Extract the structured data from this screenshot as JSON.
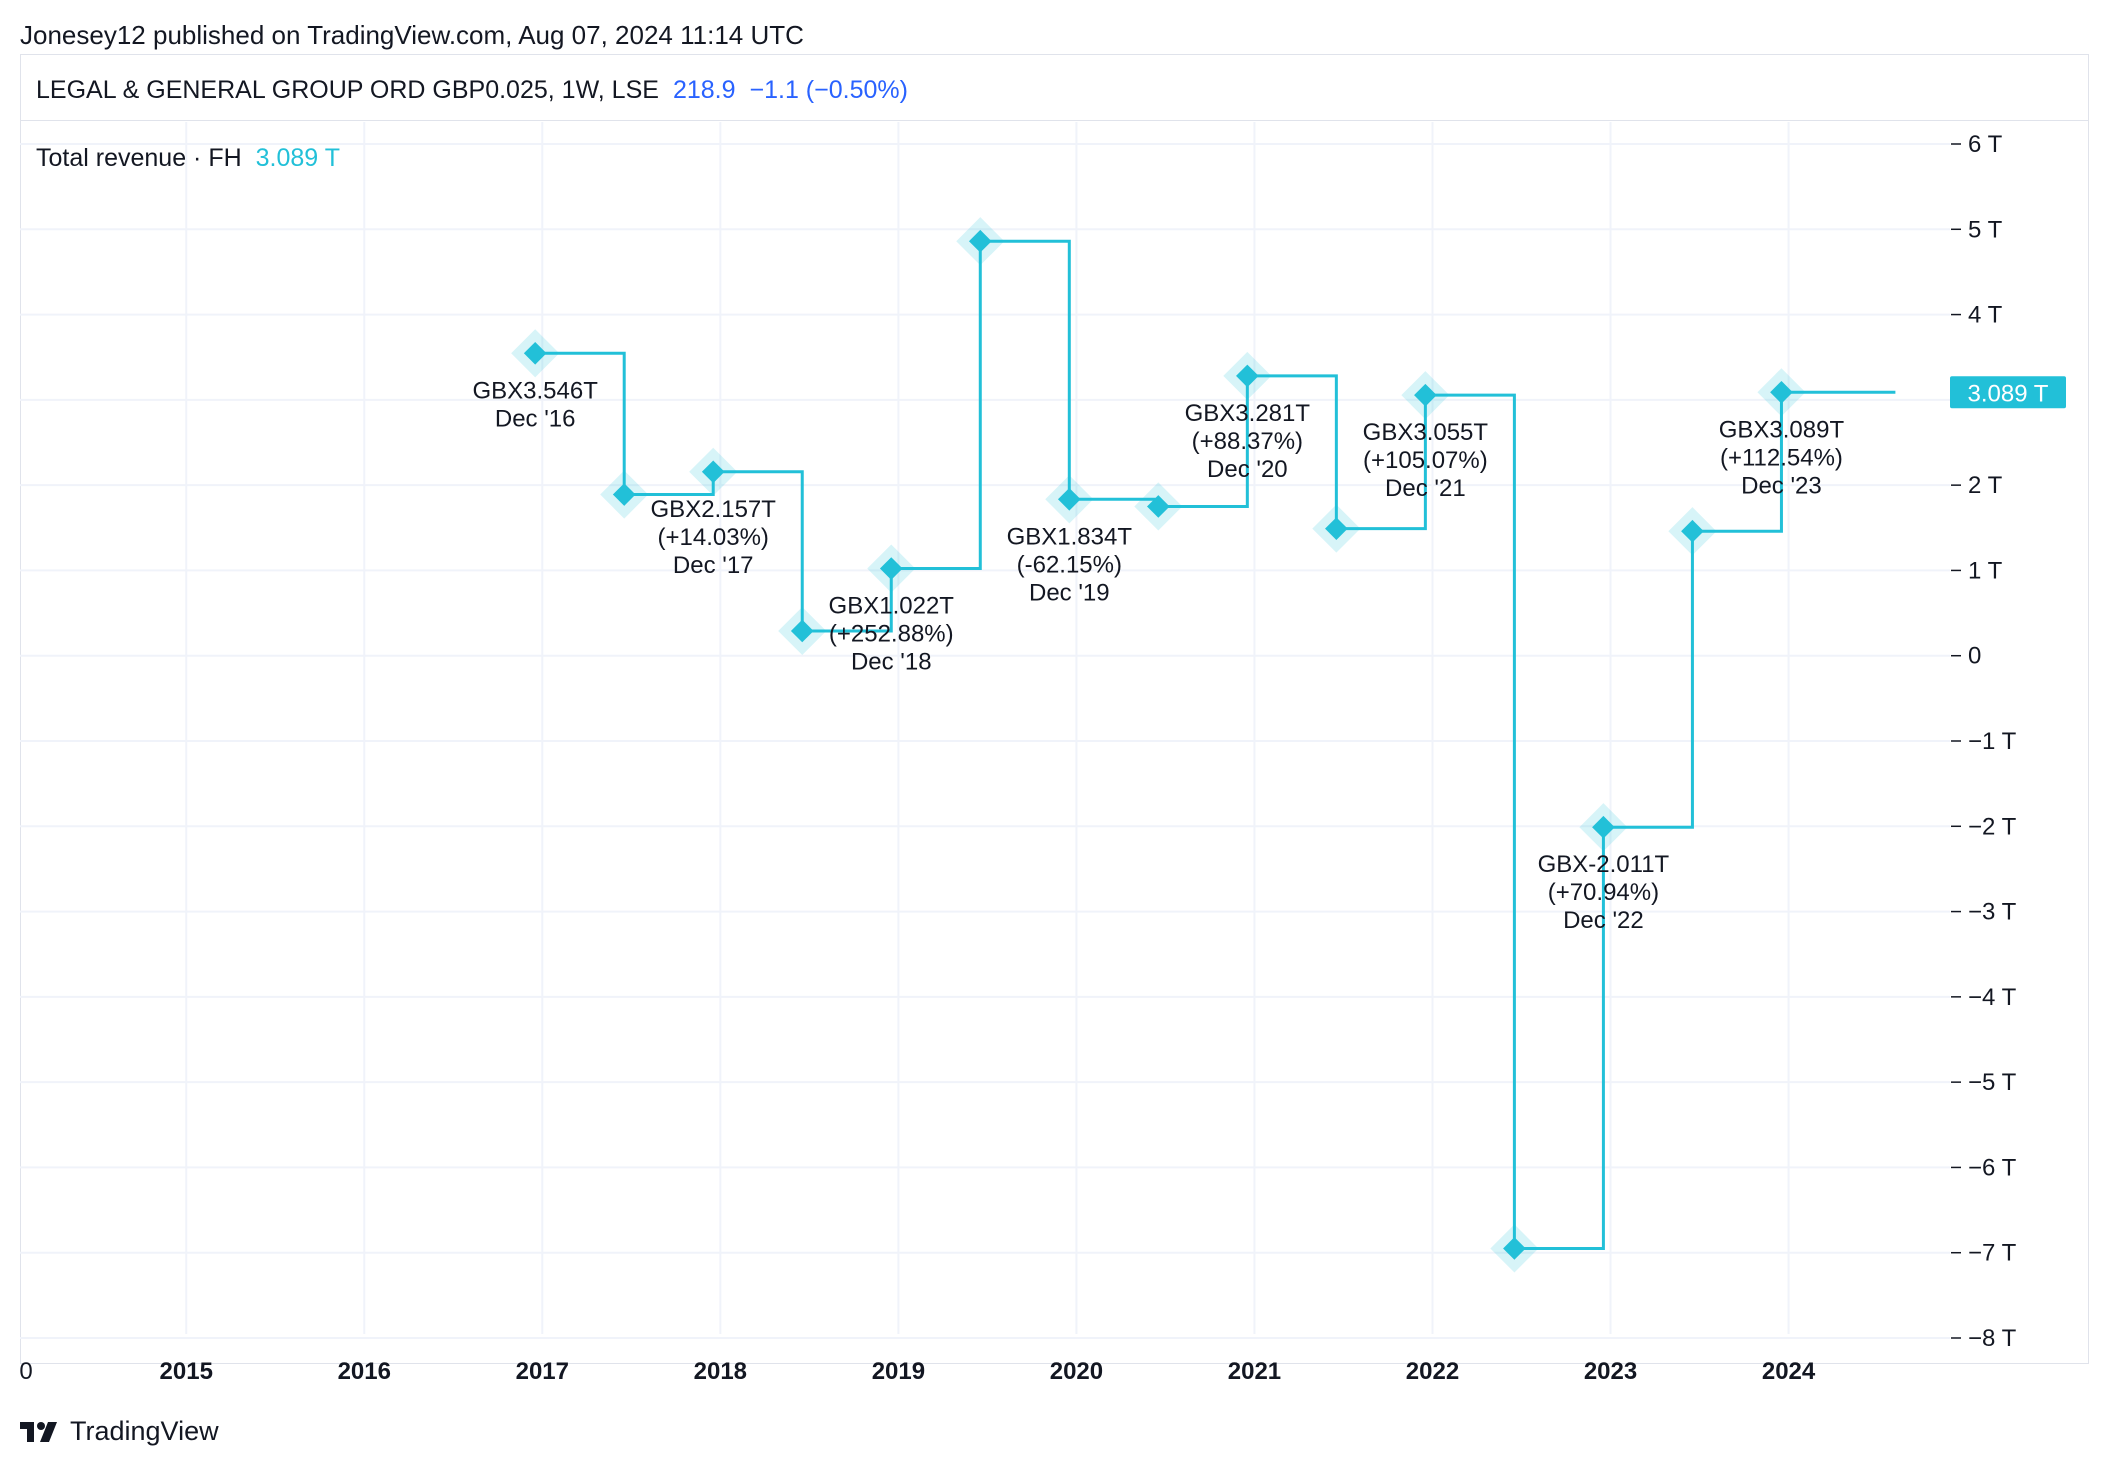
{
  "publisher_line": "Jonesey12 published on TradingView.com, Aug 07, 2024 11:14 UTC",
  "symbol": {
    "name": "LEGAL & GENERAL GROUP ORD GBP0.025, 1W, LSE",
    "price": "218.9",
    "change": "−1.1 (−0.50%)"
  },
  "indicator": {
    "name": "Total revenue · FH",
    "value": "3.089 T"
  },
  "price_tag": "3.089 T",
  "brand": "TradingView",
  "colors": {
    "series": "#22c0d8",
    "price": "#2962ff",
    "grid": "#f0f3fa"
  },
  "chart_data": {
    "type": "line",
    "title": "Total revenue · FH",
    "step": true,
    "unit": "GBX",
    "y_ticks": [
      "6 T",
      "5 T",
      "4 T",
      "3 T",
      "2 T",
      "1 T",
      "0",
      "−1 T",
      "−2 T",
      "−3 T",
      "−4 T",
      "−5 T",
      "−6 T",
      "−7 T",
      "−8 T"
    ],
    "y_tick_values": [
      6,
      5,
      4,
      3,
      2,
      1,
      0,
      -1,
      -2,
      -3,
      -4,
      -5,
      -6,
      -7,
      -8
    ],
    "ylim": [
      -8,
      6
    ],
    "x_ticks": [
      "0",
      "2015",
      "2016",
      "2017",
      "2018",
      "2019",
      "2020",
      "2021",
      "2022",
      "2023",
      "2024"
    ],
    "x_tick_values": [
      2014.1,
      2015,
      2016,
      2017,
      2018,
      2019,
      2020,
      2021,
      2022,
      2023,
      2024
    ],
    "xlim": [
      2014.1,
      2024.8
    ],
    "series": [
      {
        "points": [
          {
            "x": 2016.96,
            "y": 3.546
          },
          {
            "x": 2017.46,
            "y": 1.89
          },
          {
            "x": 2017.96,
            "y": 2.157
          },
          {
            "x": 2018.46,
            "y": 0.29
          },
          {
            "x": 2018.96,
            "y": 1.022
          },
          {
            "x": 2019.46,
            "y": 4.86
          },
          {
            "x": 2019.96,
            "y": 1.834
          },
          {
            "x": 2020.46,
            "y": 1.75
          },
          {
            "x": 2020.96,
            "y": 3.281
          },
          {
            "x": 2021.46,
            "y": 1.49
          },
          {
            "x": 2021.96,
            "y": 3.055
          },
          {
            "x": 2022.46,
            "y": -6.95
          },
          {
            "x": 2022.96,
            "y": -2.011
          },
          {
            "x": 2023.46,
            "y": 1.46
          },
          {
            "x": 2023.96,
            "y": 3.089
          }
        ],
        "last_x": 2024.6
      }
    ],
    "annotations": [
      {
        "x": 2016.96,
        "y": 3.546,
        "lines": [
          "GBX3.546T",
          "Dec '16"
        ]
      },
      {
        "x": 2017.96,
        "y": 2.157,
        "lines": [
          "GBX2.157T",
          "(+14.03%)",
          "Dec '17"
        ]
      },
      {
        "x": 2018.96,
        "y": 1.022,
        "lines": [
          "GBX1.022T",
          "(+252.88%)",
          "Dec '18"
        ]
      },
      {
        "x": 2019.96,
        "y": 1.834,
        "lines": [
          "GBX1.834T",
          "(-62.15%)",
          "Dec '19"
        ]
      },
      {
        "x": 2020.96,
        "y": 3.281,
        "lines": [
          "GBX3.281T",
          "(+88.37%)",
          "Dec '20"
        ]
      },
      {
        "x": 2021.96,
        "y": 3.055,
        "lines": [
          "GBX3.055T",
          "(+105.07%)",
          "Dec '21"
        ]
      },
      {
        "x": 2022.96,
        "y": -2.011,
        "lines": [
          "GBX-2.011T",
          "(+70.94%)",
          "Dec '22"
        ]
      },
      {
        "x": 2023.96,
        "y": 3.089,
        "lines": [
          "GBX3.089T",
          "(+112.54%)",
          "Dec '23"
        ]
      }
    ]
  }
}
